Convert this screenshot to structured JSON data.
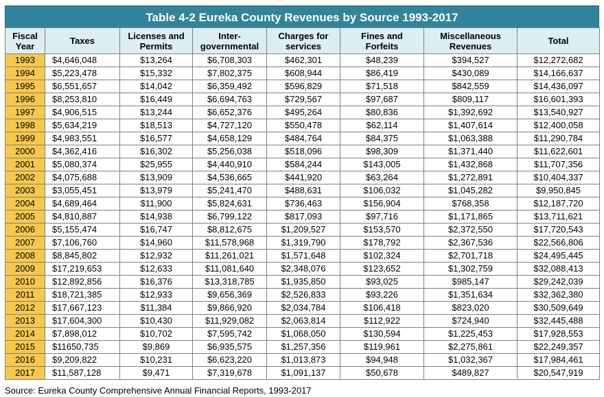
{
  "title": "Table 4-2 Eureka County Revenues by Source 1993-2017",
  "headers": [
    [
      "Fiscal",
      "Year"
    ],
    [
      "Taxes"
    ],
    [
      "Licenses and",
      "Permits"
    ],
    [
      "Inter-",
      "governmental"
    ],
    [
      "Charges for",
      "services"
    ],
    [
      "Fines and",
      "Forfeits"
    ],
    [
      "Miscellaneous",
      "Revenues"
    ],
    [
      "Total"
    ]
  ],
  "rows": [
    [
      "1993",
      "$4,646,048",
      "$13,264",
      "$6,708,303",
      "$462,301",
      "$48,239",
      "$394,527",
      "$12,272,682"
    ],
    [
      "1994",
      "$5,223,478",
      "$15,332",
      "$7,802,375",
      "$608,944",
      "$86,419",
      "$430,089",
      "$14,166,637"
    ],
    [
      "1995",
      "$6,551,657",
      "$14,042",
      "$6,359,492",
      "$596,829",
      "$71,518",
      "$842,559",
      "$14,436,097"
    ],
    [
      "1996",
      "$8,253,810",
      "$16,449",
      "$6,694,763",
      "$729,567",
      "$97,687",
      "$809,117",
      "$16,601,393"
    ],
    [
      "1997",
      "$4,906,515",
      "$13,244",
      "$6,652,376",
      "$495,264",
      "$80,836",
      "$1,392,692",
      "$13,540,927"
    ],
    [
      "1998",
      "$5,634,219",
      "$18,513",
      "$4,727,120",
      "$550,478",
      "$62,114",
      "$1,407,614",
      "$12,400,058"
    ],
    [
      "1999",
      "$4,983,551",
      "$16,577",
      "$4,658,129",
      "$484,764",
      "$84,375",
      "$1,063,388",
      "$11,290,784"
    ],
    [
      "2000",
      "$4,362,416",
      "$16,302",
      "$5,256,038",
      "$518,096",
      "$98,309",
      "$1,371,440",
      "$11,622,601"
    ],
    [
      "2001",
      "$5,080,374",
      "$25,955",
      "$4,440,910",
      "$584,244",
      "$143,005",
      "$1,432,868",
      "$11,707,356"
    ],
    [
      "2002",
      "$4,075,688",
      "$13,909",
      "$4,536,665",
      "$441,920",
      "$63,264",
      "$1,272,891",
      "$10,404,337"
    ],
    [
      "2003",
      "$3,055,451",
      "$13,979",
      "$5,241,470",
      "$488,631",
      "$106,032",
      "$1,045,282",
      "$9,950,845"
    ],
    [
      "2004",
      "$4,689,464",
      "$11,900",
      "$5,824,631",
      "$736,463",
      "$156,904",
      "$768,358",
      "$12,187,720"
    ],
    [
      "2005",
      "$4,810,887",
      "$14,938",
      "$6,799,122",
      "$817,093",
      "$97,716",
      "$1,171,865",
      "$13,711,621"
    ],
    [
      "2006",
      "$5,155,474",
      "$16,747",
      "$8,812,675",
      "$1,209,527",
      "$153,570",
      "$2,372,550",
      "$17,720,543"
    ],
    [
      "2007",
      "$7,106,760",
      "$14,960",
      "$11,578,968",
      "$1,319,790",
      "$178,792",
      "$2,367,536",
      "$22,566,806"
    ],
    [
      "2008",
      "$8,845,802",
      "$12,932",
      "$11,261,021",
      "$1,571,648",
      "$102,324",
      "$2,701,718",
      "$24,495,445"
    ],
    [
      "2009",
      "$17,219,653",
      "$12,633",
      "$11,081,640",
      "$2,348,076",
      "$123,652",
      "$1,302,759",
      "$32,088,413"
    ],
    [
      "2010",
      "$12,892,856",
      "$16,376",
      "$13,318,785",
      "$1,935,850",
      "$93,025",
      "$985,147",
      "$29,242,039"
    ],
    [
      "2011",
      "$18,721,385",
      "$12,933",
      "$9,656,369",
      "$2,526,833",
      "$93,226",
      "$1,351,634",
      "$32,362,380"
    ],
    [
      "2012",
      "$17,667,123",
      "$11,384",
      "$9,866,920",
      "$2,034,784",
      "$106,418",
      "$823,020",
      "$30,509,649"
    ],
    [
      "2013",
      "$17,604,300",
      "$10,430",
      "$11,929,082",
      "$2,063,814",
      "$112,922",
      "$724,940",
      "$32,445,488"
    ],
    [
      "2014",
      "$7,898,012",
      "$10,702",
      "$7,595,742",
      "$1,068,050",
      "$130,594",
      "$1,225,453",
      "$17,928,553"
    ],
    [
      "2015",
      "$11650,735",
      "$9,869",
      "$6,935,575",
      "$1,257,356",
      "$119,961",
      "$2,275,861",
      "$22,249,357"
    ],
    [
      "2016",
      "$9,209,822",
      "$10,231",
      "$6,623,220",
      "$1,013,873",
      "$94,948",
      "$1,032,367",
      "$17,984,461"
    ],
    [
      "2017",
      "$11,587,128",
      "$9,471",
      "$7,319,678",
      "$1,091,137",
      "$50,678",
      "$489,827",
      "$20,547,919"
    ]
  ],
  "source": "Source: Eureka County Comprehensive Annual Financial Reports, 1993-2017"
}
